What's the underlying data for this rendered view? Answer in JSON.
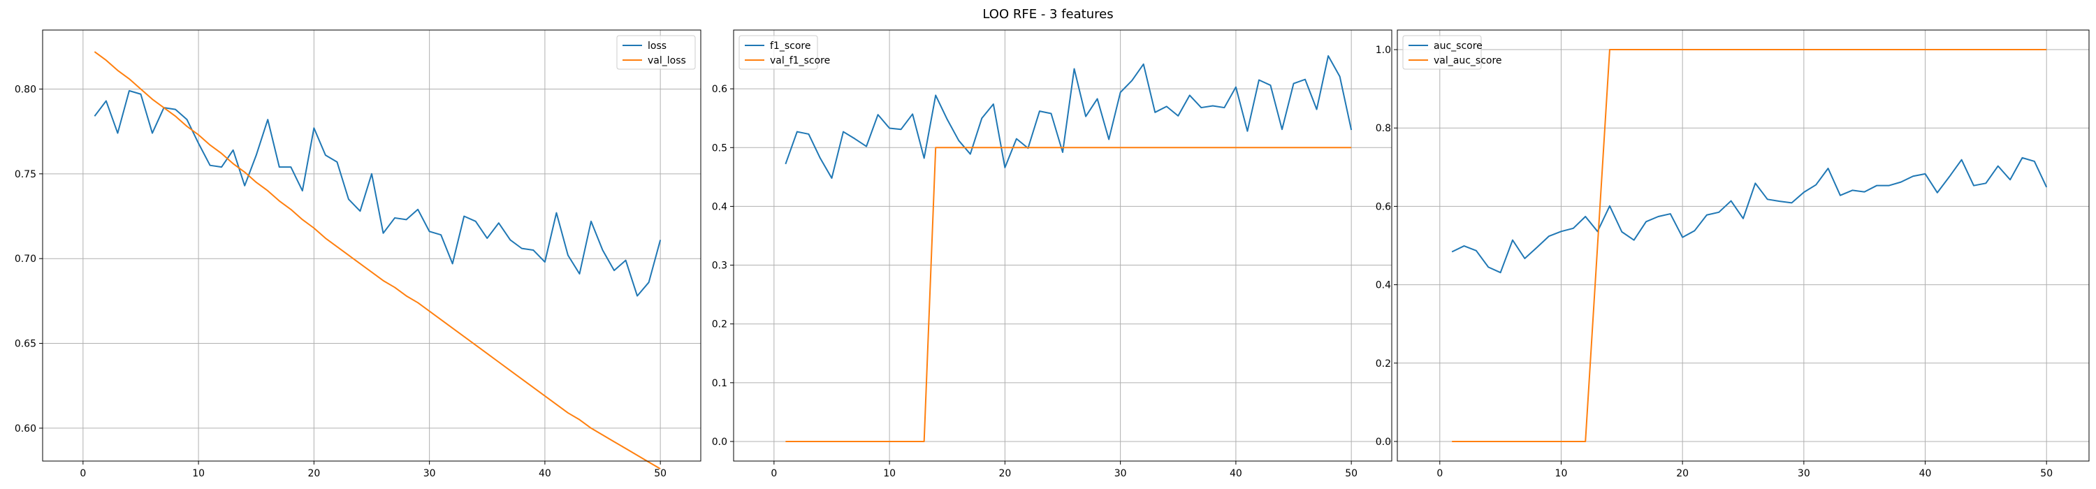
{
  "figure": {
    "title": "LOO RFE - 3 features"
  },
  "colors": {
    "series1": "#1f77b4",
    "series2": "#ff7f0e",
    "grid": "#b0b0b0",
    "axis": "#000000"
  },
  "chart_data": [
    {
      "type": "line",
      "title": "",
      "xlabel": "",
      "ylabel": "",
      "xlim": [
        -3.5,
        53.5
      ],
      "ylim": [
        0.5806,
        0.8348
      ],
      "xticks": [
        0,
        10,
        20,
        30,
        40,
        50
      ],
      "yticks": [
        0.6,
        0.65,
        0.7,
        0.75,
        0.8
      ],
      "ytick_labels": [
        "0.60",
        "0.65",
        "0.70",
        "0.75",
        "0.80"
      ],
      "grid": true,
      "legend": "top-right",
      "x": [
        1,
        2,
        3,
        4,
        5,
        6,
        7,
        8,
        9,
        10,
        11,
        12,
        13,
        14,
        15,
        16,
        17,
        18,
        19,
        20,
        21,
        22,
        23,
        24,
        25,
        26,
        27,
        28,
        29,
        30,
        31,
        32,
        33,
        34,
        35,
        36,
        37,
        38,
        39,
        40,
        41,
        42,
        43,
        44,
        45,
        46,
        47,
        48,
        49,
        50
      ],
      "series": [
        {
          "name": "loss",
          "values": [
            0.784,
            0.793,
            0.774,
            0.799,
            0.797,
            0.774,
            0.789,
            0.788,
            0.782,
            0.768,
            0.755,
            0.754,
            0.764,
            0.743,
            0.761,
            0.782,
            0.754,
            0.754,
            0.74,
            0.777,
            0.761,
            0.757,
            0.735,
            0.728,
            0.75,
            0.715,
            0.724,
            0.723,
            0.729,
            0.716,
            0.714,
            0.697,
            0.725,
            0.722,
            0.712,
            0.721,
            0.711,
            0.706,
            0.705,
            0.698,
            0.727,
            0.702,
            0.691,
            0.722,
            0.705,
            0.693,
            0.699,
            0.678,
            0.686,
            0.711
          ]
        },
        {
          "name": "val_loss",
          "values": [
            0.822,
            0.817,
            0.811,
            0.806,
            0.8,
            0.794,
            0.789,
            0.784,
            0.778,
            0.773,
            0.767,
            0.762,
            0.756,
            0.751,
            0.745,
            0.74,
            0.734,
            0.729,
            0.723,
            0.718,
            0.712,
            0.707,
            0.702,
            0.697,
            0.692,
            0.687,
            0.683,
            0.678,
            0.674,
            0.669,
            0.664,
            0.659,
            0.654,
            0.649,
            0.644,
            0.639,
            0.634,
            0.629,
            0.624,
            0.619,
            0.614,
            0.609,
            0.605,
            0.6,
            0.596,
            0.592,
            0.588,
            0.584,
            0.58,
            0.576
          ]
        }
      ]
    },
    {
      "type": "line",
      "title": "",
      "xlabel": "",
      "ylabel": "",
      "xlim": [
        -3.5,
        53.5
      ],
      "ylim": [
        -0.0333,
        0.7
      ],
      "xticks": [
        0,
        10,
        20,
        30,
        40,
        50
      ],
      "yticks": [
        0.0,
        0.1,
        0.2,
        0.3,
        0.4,
        0.5,
        0.6
      ],
      "ytick_labels": [
        "0.0",
        "0.1",
        "0.2",
        "0.3",
        "0.4",
        "0.5",
        "0.6"
      ],
      "grid": true,
      "legend": "top-left",
      "x": [
        1,
        2,
        3,
        4,
        5,
        6,
        7,
        8,
        9,
        10,
        11,
        12,
        13,
        14,
        15,
        16,
        17,
        18,
        19,
        20,
        21,
        22,
        23,
        24,
        25,
        26,
        27,
        28,
        29,
        30,
        31,
        32,
        33,
        34,
        35,
        36,
        37,
        38,
        39,
        40,
        41,
        42,
        43,
        44,
        45,
        46,
        47,
        48,
        49,
        50
      ],
      "series": [
        {
          "name": "f1_score",
          "values": [
            0.472,
            0.527,
            0.523,
            0.482,
            0.448,
            0.527,
            0.515,
            0.502,
            0.556,
            0.533,
            0.531,
            0.557,
            0.482,
            0.589,
            0.548,
            0.512,
            0.489,
            0.55,
            0.574,
            0.466,
            0.515,
            0.499,
            0.562,
            0.558,
            0.492,
            0.634,
            0.553,
            0.583,
            0.514,
            0.594,
            0.614,
            0.642,
            0.56,
            0.57,
            0.554,
            0.589,
            0.568,
            0.571,
            0.568,
            0.603,
            0.528,
            0.615,
            0.606,
            0.531,
            0.609,
            0.616,
            0.565,
            0.656,
            0.621,
            0.53
          ]
        },
        {
          "name": "val_f1_score",
          "values": [
            0,
            0,
            0,
            0,
            0,
            0,
            0,
            0,
            0,
            0,
            0,
            0,
            0,
            0.5,
            0.5,
            0.5,
            0.5,
            0.5,
            0.5,
            0.5,
            0.5,
            0.5,
            0.5,
            0.5,
            0.5,
            0.5,
            0.5,
            0.5,
            0.5,
            0.5,
            0.5,
            0.5,
            0.5,
            0.5,
            0.5,
            0.5,
            0.5,
            0.5,
            0.5,
            0.5,
            0.5,
            0.5,
            0.5,
            0.5,
            0.5,
            0.5,
            0.5,
            0.5,
            0.5,
            0.5
          ]
        }
      ]
    },
    {
      "type": "line",
      "title": "",
      "xlabel": "",
      "ylabel": "",
      "xlim": [
        -3.5,
        53.5
      ],
      "ylim": [
        -0.05,
        1.05
      ],
      "xticks": [
        0,
        10,
        20,
        30,
        40,
        50
      ],
      "yticks": [
        0.0,
        0.2,
        0.4,
        0.6,
        0.8,
        1.0
      ],
      "ytick_labels": [
        "0.0",
        "0.2",
        "0.4",
        "0.6",
        "0.8",
        "1.0"
      ],
      "grid": true,
      "legend": "top-left",
      "x": [
        1,
        2,
        3,
        4,
        5,
        6,
        7,
        8,
        9,
        10,
        11,
        12,
        13,
        14,
        15,
        16,
        17,
        18,
        19,
        20,
        21,
        22,
        23,
        24,
        25,
        26,
        27,
        28,
        29,
        30,
        31,
        32,
        33,
        34,
        35,
        36,
        37,
        38,
        39,
        40,
        41,
        42,
        43,
        44,
        45,
        46,
        47,
        48,
        49,
        50
      ],
      "series": [
        {
          "name": "auc_score",
          "values": [
            0.484,
            0.499,
            0.487,
            0.445,
            0.431,
            0.514,
            0.467,
            0.495,
            0.524,
            0.536,
            0.544,
            0.574,
            0.536,
            0.601,
            0.535,
            0.514,
            0.561,
            0.574,
            0.581,
            0.521,
            0.538,
            0.578,
            0.585,
            0.614,
            0.569,
            0.659,
            0.618,
            0.613,
            0.609,
            0.636,
            0.655,
            0.697,
            0.628,
            0.641,
            0.637,
            0.653,
            0.653,
            0.662,
            0.677,
            0.683,
            0.635,
            0.676,
            0.719,
            0.653,
            0.659,
            0.703,
            0.668,
            0.724,
            0.715,
            0.649
          ]
        },
        {
          "name": "val_auc_score",
          "values": [
            0,
            0,
            0,
            0,
            0,
            0,
            0,
            0,
            0,
            0,
            0,
            0,
            0.5,
            1,
            1,
            1,
            1,
            1,
            1,
            1,
            1,
            1,
            1,
            1,
            1,
            1,
            1,
            1,
            1,
            1,
            1,
            1,
            1,
            1,
            1,
            1,
            1,
            1,
            1,
            1,
            1,
            1,
            1,
            1,
            1,
            1,
            1,
            1,
            1,
            1
          ]
        }
      ]
    }
  ]
}
